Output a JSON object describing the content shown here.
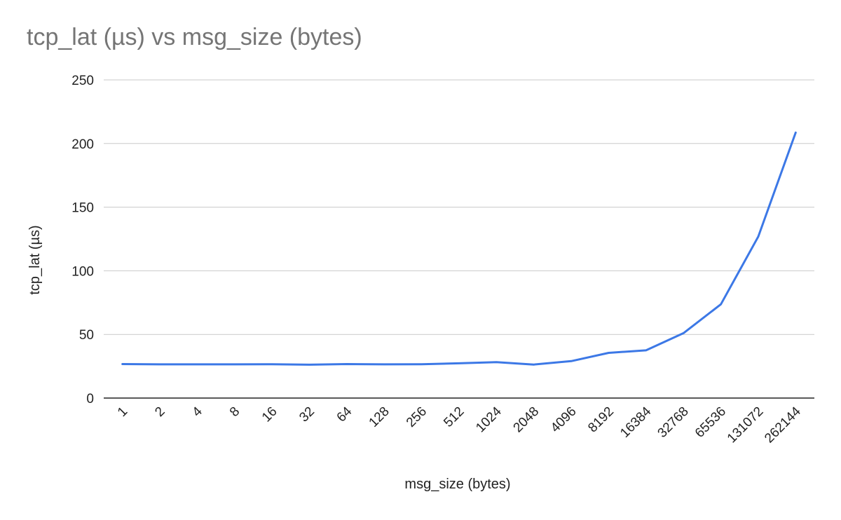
{
  "chart_data": {
    "type": "line",
    "title": "tcp_lat (µs) vs msg_size (bytes)",
    "xlabel": "msg_size (bytes)",
    "ylabel": "tcp_lat (µs)",
    "ylim": [
      0,
      250
    ],
    "yticks": [
      0,
      50,
      100,
      150,
      200,
      250
    ],
    "grid": true,
    "categories": [
      "1",
      "2",
      "4",
      "8",
      "16",
      "32",
      "64",
      "128",
      "256",
      "512",
      "1024",
      "2048",
      "4096",
      "8192",
      "16384",
      "32768",
      "65536",
      "131072",
      "262144"
    ],
    "series": [
      {
        "color": "#3c78e6",
        "values": [
          26.7,
          26.5,
          26.5,
          26.5,
          26.6,
          26.2,
          26.7,
          26.5,
          26.6,
          27.3,
          28.2,
          26.3,
          29.0,
          35.5,
          37.5,
          51.0,
          73.7,
          126.8,
          208.6
        ]
      }
    ],
    "colors": {
      "gridline": "#c9c9c9",
      "axis": "#222222",
      "title": "#757575"
    }
  }
}
